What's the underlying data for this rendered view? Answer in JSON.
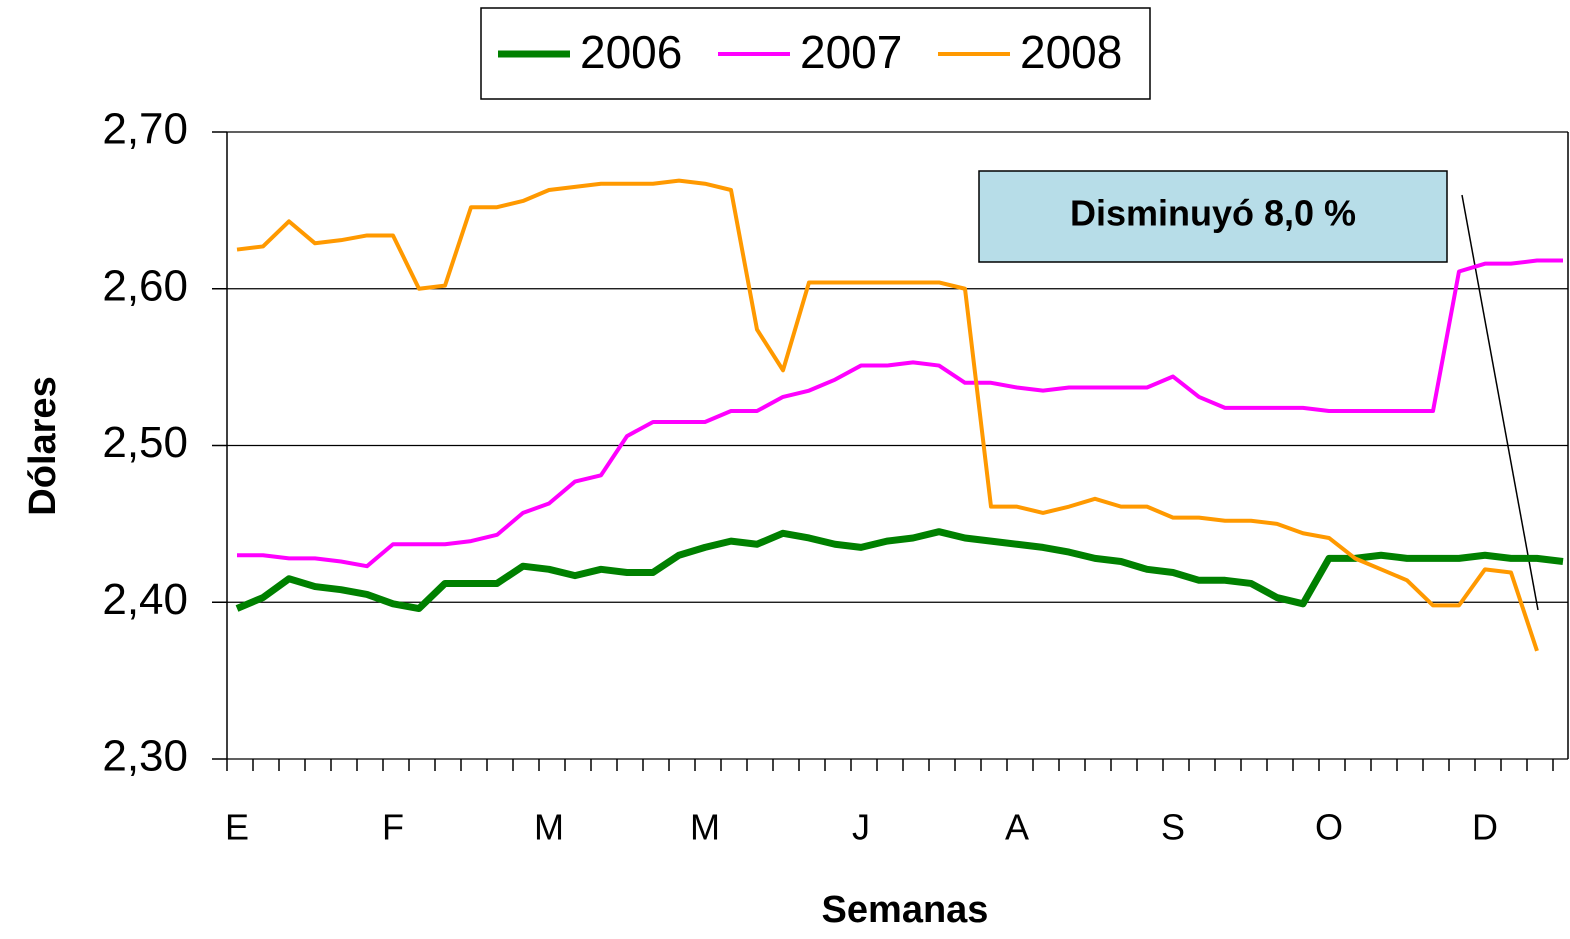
{
  "chart_data": {
    "type": "line",
    "xlabel": "Semanas",
    "ylabel": "Dólares",
    "annotation": "Disminuyó  8,0 %",
    "categories": [
      "E",
      null,
      null,
      null,
      null,
      null,
      "F",
      null,
      null,
      null,
      null,
      null,
      "M",
      null,
      null,
      null,
      null,
      null,
      "M",
      null,
      null,
      null,
      null,
      null,
      "J",
      null,
      null,
      null,
      null,
      null,
      "A",
      null,
      null,
      null,
      null,
      null,
      "S",
      null,
      null,
      null,
      null,
      null,
      "O",
      null,
      null,
      null,
      null,
      null,
      "D",
      null,
      null,
      null
    ],
    "series": [
      {
        "name": "2006",
        "color": "#008000",
        "width": 7,
        "values": [
          2.396,
          2.403,
          2.415,
          2.41,
          2.408,
          2.405,
          2.399,
          2.396,
          2.412,
          2.412,
          2.412,
          2.423,
          2.421,
          2.417,
          2.421,
          2.419,
          2.419,
          2.43,
          2.435,
          2.439,
          2.437,
          2.444,
          2.441,
          2.437,
          2.435,
          2.439,
          2.441,
          2.445,
          2.441,
          2.439,
          2.437,
          2.435,
          2.432,
          2.428,
          2.426,
          2.421,
          2.419,
          2.414,
          2.414,
          2.412,
          2.403,
          2.399,
          2.428,
          2.428,
          2.43,
          2.428,
          2.428,
          2.428,
          2.43,
          2.428,
          2.428,
          2.426
        ]
      },
      {
        "name": "2007",
        "color": "#ff00ff",
        "width": 4,
        "values": [
          2.43,
          2.43,
          2.428,
          2.428,
          2.426,
          2.423,
          2.437,
          2.437,
          2.437,
          2.439,
          2.443,
          2.457,
          2.463,
          2.477,
          2.481,
          2.506,
          2.515,
          2.515,
          2.515,
          2.522,
          2.522,
          2.531,
          2.535,
          2.542,
          2.551,
          2.551,
          2.553,
          2.551,
          2.54,
          2.54,
          2.537,
          2.535,
          2.537,
          2.537,
          2.537,
          2.537,
          2.544,
          2.531,
          2.524,
          2.524,
          2.524,
          2.524,
          2.522,
          2.522,
          2.522,
          2.522,
          2.522,
          2.611,
          2.616,
          2.616,
          2.618,
          2.618
        ]
      },
      {
        "name": "2008",
        "color": "#ff9900",
        "width": 4,
        "values": [
          2.625,
          2.627,
          2.643,
          2.629,
          2.631,
          2.634,
          2.634,
          2.6,
          2.602,
          2.652,
          2.652,
          2.656,
          2.663,
          2.665,
          2.667,
          2.667,
          2.667,
          2.669,
          2.667,
          2.663,
          2.574,
          2.548,
          2.604,
          2.604,
          2.604,
          2.604,
          2.604,
          2.604,
          2.6,
          2.461,
          2.461,
          2.457,
          2.461,
          2.466,
          2.461,
          2.461,
          2.454,
          2.454,
          2.452,
          2.452,
          2.45,
          2.444,
          2.441,
          2.428,
          2.421,
          2.414,
          2.398,
          2.398,
          2.421,
          2.419,
          2.369,
          null
        ]
      }
    ],
    "ylim": [
      2.3,
      2.7
    ],
    "yticks": [
      {
        "value": 2.3,
        "label": "2,30"
      },
      {
        "value": 2.4,
        "label": "2,40"
      },
      {
        "value": 2.5,
        "label": "2,50"
      },
      {
        "value": 2.6,
        "label": "2,60"
      },
      {
        "value": 2.7,
        "label": "2,70"
      }
    ],
    "grid": true
  }
}
